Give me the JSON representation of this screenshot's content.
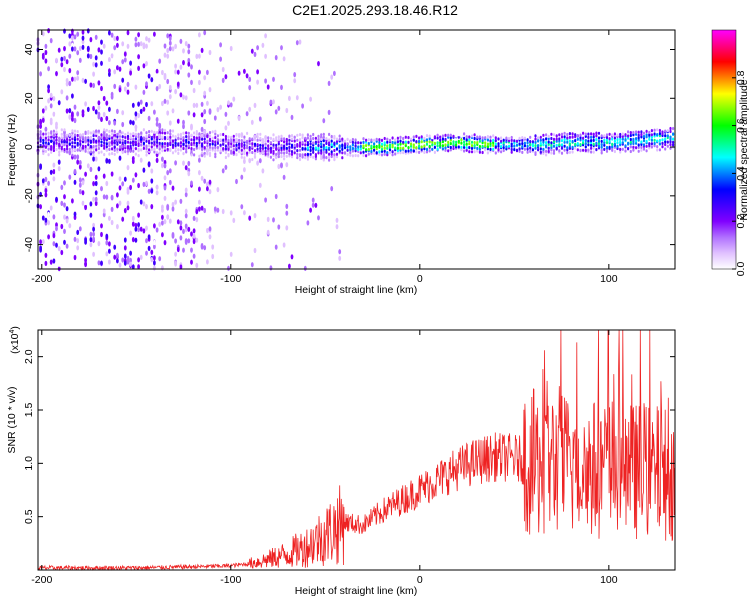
{
  "title": "C2E1.2025.293.18.46.R12",
  "chart_data": [
    {
      "type": "heatmap",
      "xlabel": "Height of straight line (km)",
      "ylabel": "Frequency (Hz)",
      "xlim": [
        -202,
        135
      ],
      "ylim": [
        -50,
        48
      ],
      "xticks": [
        -200,
        -100,
        0,
        100
      ],
      "yticks": [
        -40,
        -20,
        0,
        20,
        40
      ],
      "colorbar": {
        "label": "Normalized spectral amplitude",
        "range": [
          0,
          1
        ],
        "ticks": [
          "0.0",
          "0.2",
          "0.4",
          "0.6",
          "0.8"
        ],
        "tick_values": [
          0,
          0.2,
          0.4,
          0.6,
          0.8
        ],
        "colormap": [
          "#ffffff",
          "#e0c0ff",
          "#b070ff",
          "#8000ff",
          "#4000ff",
          "#0000ff",
          "#0080ff",
          "#00ffff",
          "#00ff80",
          "#00ff00",
          "#80ff00",
          "#ffff00",
          "#ff8000",
          "#ff0000",
          "#ff0080",
          "#ff00ff"
        ]
      },
      "ridge": [
        {
          "x": -145,
          "y": 2
        },
        {
          "x": -120,
          "y": 2
        },
        {
          "x": -100,
          "y": 1
        },
        {
          "x": -80,
          "y": 0
        },
        {
          "x": -60,
          "y": 0
        },
        {
          "x": -40,
          "y": 0
        },
        {
          "x": -20,
          "y": 0
        },
        {
          "x": 0,
          "y": 1
        },
        {
          "x": 20,
          "y": 2
        },
        {
          "x": 40,
          "y": 1
        },
        {
          "x": 60,
          "y": 1
        },
        {
          "x": 80,
          "y": 2
        },
        {
          "x": 100,
          "y": 2
        },
        {
          "x": 120,
          "y": 3
        },
        {
          "x": 135,
          "y": 4
        }
      ]
    },
    {
      "type": "line",
      "xlabel": "Height of straight line (km)",
      "ylabel": "SNR (10 * v/v)",
      "yscale_note": "(x10",
      "yscale_exp": "4",
      "xlim": [
        -202,
        135
      ],
      "ylim": [
        0,
        2.25
      ],
      "xticks": [
        -200,
        -100,
        0,
        100
      ],
      "yticks": [
        "0.5",
        "1.0",
        "1.5",
        "2.0"
      ],
      "ytick_values": [
        0.5,
        1.0,
        1.5,
        2.0
      ],
      "color": "#ee2222",
      "envelope": [
        {
          "x": -202,
          "y": 0.02
        },
        {
          "x": -150,
          "y": 0.02
        },
        {
          "x": -120,
          "y": 0.03
        },
        {
          "x": -100,
          "y": 0.04
        },
        {
          "x": -90,
          "y": 0.06
        },
        {
          "x": -80,
          "y": 0.1
        },
        {
          "x": -70,
          "y": 0.15
        },
        {
          "x": -60,
          "y": 0.22
        },
        {
          "x": -50,
          "y": 0.33
        },
        {
          "x": -40,
          "y": 0.45
        },
        {
          "x": -30,
          "y": 0.42
        },
        {
          "x": -20,
          "y": 0.55
        },
        {
          "x": -10,
          "y": 0.65
        },
        {
          "x": 0,
          "y": 0.75
        },
        {
          "x": 10,
          "y": 0.85
        },
        {
          "x": 20,
          "y": 0.95
        },
        {
          "x": 30,
          "y": 1.02
        },
        {
          "x": 40,
          "y": 1.06
        },
        {
          "x": 50,
          "y": 1.05
        },
        {
          "x": 60,
          "y": 1.0
        },
        {
          "x": 70,
          "y": 1.0
        },
        {
          "x": 80,
          "y": 0.98
        },
        {
          "x": 90,
          "y": 0.95
        },
        {
          "x": 100,
          "y": 0.95
        },
        {
          "x": 110,
          "y": 0.93
        },
        {
          "x": 120,
          "y": 0.92
        },
        {
          "x": 135,
          "y": 0.9
        }
      ]
    }
  ]
}
